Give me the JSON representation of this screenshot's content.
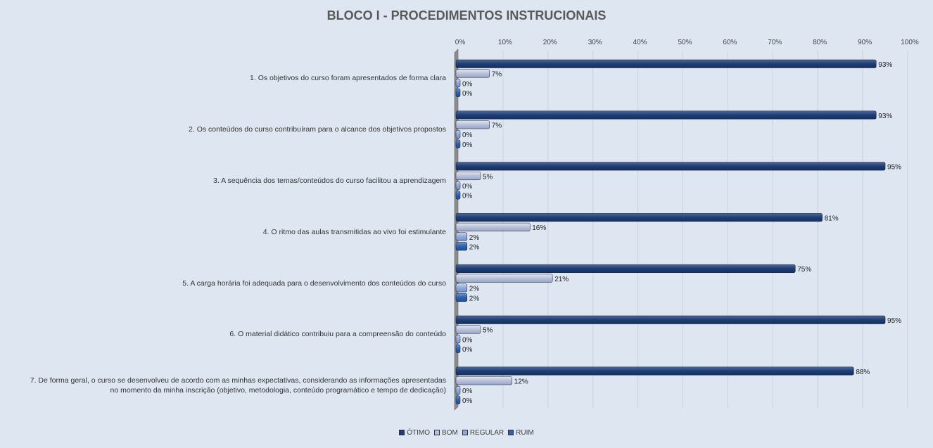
{
  "chart_data": {
    "type": "bar",
    "orientation": "horizontal",
    "title": "BLOCO I - PROCEDIMENTOS  INSTRUCIONAIS",
    "xlim": [
      0,
      100
    ],
    "xticks": [
      "0%",
      "10%",
      "20%",
      "30%",
      "40%",
      "50%",
      "60%",
      "70%",
      "80%",
      "90%",
      "100%"
    ],
    "grid": true,
    "legend_position": "bottom",
    "categories": [
      "1. Os objetivos do curso foram apresentados de forma clara",
      "2. Os conteúdos do curso contribuíram para o alcance dos objetivos propostos",
      "3. A sequência dos temas/conteúdos do curso facilitou a aprendizagem",
      "4. O ritmo das aulas transmitidas ao vivo foi estimulante",
      "5. A carga horária foi adequada para o desenvolvimento dos conteúdos do curso",
      "6. O material didático contribuiu para a compreensão do conteúdo",
      "7. De forma geral, o curso se desenvolveu de acordo com as minhas expectativas, considerando as informações apresentadas\nno momento da minha inscrição (objetivo, metodologia, conteúdo programático e tempo de dedicação)"
    ],
    "series": [
      {
        "name": "ÓTIMO",
        "color": "#1f3d73",
        "values": [
          93,
          93,
          95,
          81,
          75,
          95,
          88
        ]
      },
      {
        "name": "BOM",
        "color": "#b8c2dc",
        "values": [
          7,
          7,
          5,
          16,
          21,
          5,
          12
        ]
      },
      {
        "name": "REGULAR",
        "color": "#8ea9db",
        "values": [
          0,
          0,
          0,
          2,
          2,
          0,
          0
        ]
      },
      {
        "name": "RUIM",
        "color": "#2e62ae",
        "values": [
          0,
          0,
          0,
          2,
          2,
          0,
          0
        ]
      }
    ],
    "value_labels": [
      [
        "93%",
        "7%",
        "0%",
        "0%"
      ],
      [
        "93%",
        "7%",
        "0%",
        "0%"
      ],
      [
        "95%",
        "5%",
        "0%",
        "0%"
      ],
      [
        "81%",
        "16%",
        "2%",
        "2%"
      ],
      [
        "75%",
        "21%",
        "2%",
        "2%"
      ],
      [
        "95%",
        "5%",
        "0%",
        "0%"
      ],
      [
        "88%",
        "12%",
        "0%",
        "0%"
      ]
    ]
  }
}
